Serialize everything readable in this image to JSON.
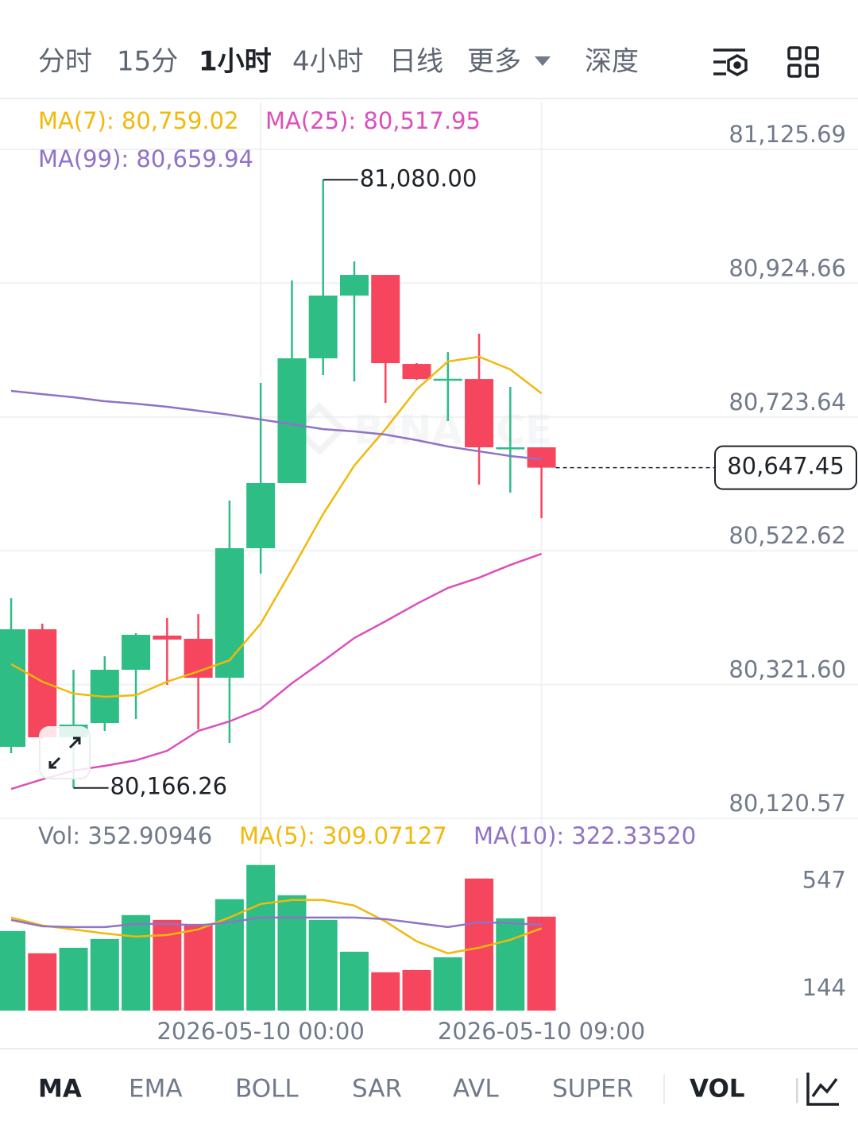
{
  "timeframe_tabs": [
    "分时",
    "15分",
    "1小时",
    "4小时",
    "日线",
    "更多",
    "深度"
  ],
  "active_timeframe": 2,
  "indicator_tabs": [
    "MA",
    "EMA",
    "BOLL",
    "SAR",
    "AVL",
    "SUPER",
    "VOL"
  ],
  "active_indicators": [
    0,
    6
  ],
  "watermark": "BINANCE",
  "chart_data": [
    {
      "type": "candlestick",
      "up_color": "#2ebd85",
      "down_color": "#f6465d",
      "open": [
        80228.0,
        80404.6,
        80242.3,
        80263.8,
        80343.8,
        80395.1,
        80390.3,
        80331.8,
        80526.4,
        80624.3,
        80811.7,
        80906.0,
        80937.0,
        80803.3,
        80778.0,
        80780.6,
        80675.6,
        80678.0
      ],
      "high": [
        80451.2,
        80413.0,
        80343.8,
        80364.1,
        80398.7,
        80421.4,
        80427.3,
        80598.0,
        80774.7,
        80928.6,
        81080.0,
        80957.3,
        80937.0,
        80804.5,
        80821.2,
        80848.7,
        80768.7,
        80678.0
      ],
      "low": [
        80218.4,
        80240.0,
        80166.26,
        80251.9,
        80269.8,
        80321.1,
        80254.2,
        80234.0,
        80488.2,
        80624.3,
        80786.6,
        80777.0,
        80744.8,
        80779.4,
        80717.4,
        80621.9,
        80609.9,
        80571.7
      ],
      "close": [
        80404.6,
        80242.3,
        80261.4,
        80343.8,
        80396.3,
        80389.1,
        80331.8,
        80526.4,
        80624.3,
        80811.7,
        80906.0,
        80937.0,
        80804.5,
        80780.6,
        80781.0,
        80678.0,
        80678.0,
        80647.45
      ],
      "series": [
        {
          "name": "MA(7): 80,759.02",
          "color": "#f0b90b",
          "values": [
            80352.2,
            80325.9,
            80308.0,
            80303.2,
            80305.6,
            80325.9,
            80341.4,
            80358.1,
            80413.0,
            80494.2,
            80577.7,
            80650.6,
            80705.4,
            80765.1,
            80806.9,
            80814.1,
            80795.0,
            80759.02
          ]
        },
        {
          "name": "MA(25): 80,517.95",
          "color": "#db4fbd",
          "values": [
            80164.7,
            80179.1,
            80192.2,
            80199.4,
            80207.7,
            80222.0,
            80251.9,
            80266.2,
            80285.3,
            80323.5,
            80356.9,
            80391.5,
            80416.6,
            80442.8,
            80466.7,
            80482.2,
            80501.3,
            80517.95
          ]
        },
        {
          "name": "MA(99): 80,659.94",
          "color": "#9072c6",
          "values": [
            80762.8,
            80757.9,
            80753.2,
            80747.2,
            80743.6,
            80738.9,
            80732.9,
            80726.9,
            80719.8,
            80712.6,
            80705.4,
            80701.9,
            80697.1,
            80688.8,
            80679.2,
            80672.0,
            80664.9,
            80659.94
          ]
        }
      ],
      "high_marker": {
        "value": 81080.0,
        "label": "81,080.00"
      },
      "low_marker": {
        "value": 80166.26,
        "label": "80,166.26"
      },
      "current_price": {
        "value": 80647.45,
        "label": "80,647.45"
      },
      "ylim": [
        80120.57,
        81197.3
      ],
      "yticks": [
        {
          "value": 80120.57,
          "label": "80,120.57"
        },
        {
          "value": 80321.6,
          "label": "80,321.60"
        },
        {
          "value": 80522.62,
          "label": "80,522.62"
        },
        {
          "value": 80723.64,
          "label": "80,723.64"
        },
        {
          "value": 80924.66,
          "label": "80,924.66"
        },
        {
          "value": 81125.69,
          "label": "81,125.69"
        }
      ],
      "grid": true
    },
    {
      "type": "bar",
      "categories": [
        null,
        null,
        null,
        null,
        null,
        null,
        null,
        null,
        "2026-05-10 00:00",
        null,
        null,
        null,
        null,
        null,
        null,
        null,
        null,
        "2026-05-10 09:00"
      ],
      "series": [
        {
          "name": "Vol: 352.90946",
          "values": [
            298.9,
            215.2,
            236.1,
            269.0,
            358.7,
            340.7,
            325.8,
            418.5,
            547,
            433.4,
            340.7,
            221.2,
            144,
            152.4,
            200.3,
            496.2,
            346.7,
            352.90946
          ]
        },
        {
          "name": "MA(5): 309.07127",
          "color": "#f0b90b",
          "values": [
            349.7,
            319.8,
            304.9,
            289.9,
            278.0,
            284.0,
            304.9,
            349.7,
            400.5,
            415.5,
            415.5,
            394.5,
            334.8,
            260.0,
            215.2,
            236.1,
            266.0,
            309.07127
          ]
        },
        {
          "name": "MA(10): 322.33520",
          "color": "#9072c6",
          "values": [
            340.7,
            316.8,
            313.8,
            313.8,
            325.8,
            325.8,
            319.8,
            331.8,
            349.7,
            349.7,
            349.7,
            349.7,
            343.7,
            328.8,
            313.8,
            331.8,
            328.8,
            322.3352
          ]
        }
      ],
      "ylim": [
        0,
        588
      ],
      "yticks": [
        144,
        547
      ],
      "grid": false
    }
  ]
}
